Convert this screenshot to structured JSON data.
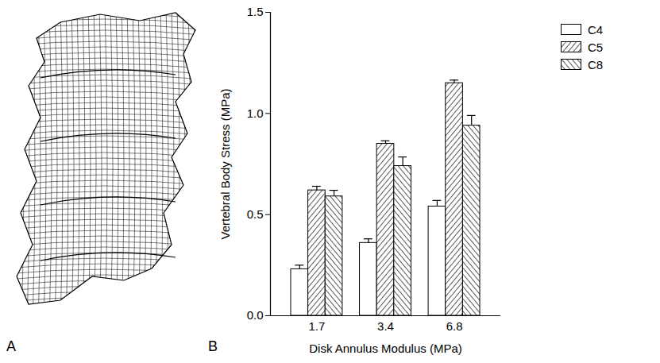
{
  "chart_data": {
    "type": "bar",
    "annotations": [
      "A",
      "B"
    ],
    "x_label": "Disk Annulus Modulus (MPa)",
    "y_label": "Vertebral Body Stress (MPa)",
    "categories": [
      "1.7",
      "3.4",
      "6.8"
    ],
    "series": [
      {
        "name": "C4",
        "values": [
          0.23,
          0.36,
          0.54
        ],
        "errors": [
          0.02,
          0.02,
          0.03
        ]
      },
      {
        "name": "C5",
        "values": [
          0.62,
          0.85,
          1.15
        ],
        "errors": [
          0.02,
          0.015,
          0.015
        ]
      },
      {
        "name": "C8",
        "values": [
          0.59,
          0.74,
          0.94
        ],
        "errors": [
          0.03,
          0.045,
          0.05
        ]
      }
    ],
    "ylim": [
      0,
      1.5
    ],
    "yticks": [
      {
        "value": 0,
        "label": "0.0"
      },
      0.5,
      {
        "value": 1,
        "label": "1.0"
      },
      1.5
    ],
    "legend": "right",
    "grid": false
  }
}
